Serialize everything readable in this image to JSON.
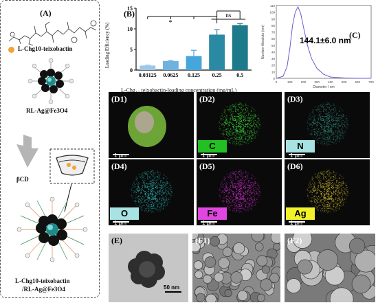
{
  "panelA": {
    "label": "(A)",
    "peptide_label": "L-Chg10-teixobactin",
    "np_label": "RL-Ag@Fe3O4",
    "bcd_label": "βCD",
    "final_label_line1": "L-Chg10-teixobactin",
    "final_label_line2": "/RL-Ag@Fe3O4"
  },
  "panelB": {
    "label": "(B)",
    "sig_star": "*",
    "sig_ns": "ns"
  },
  "panelC": {
    "label": "(C)",
    "size_text": "144.1±6.0 nm"
  },
  "chart_data": [
    {
      "type": "bar",
      "title": "",
      "xlabel": "L-Chg10 teixobactin-loading concentration (mg/mL)",
      "ylabel": "Loading Efficiency (%)",
      "categories": [
        "0.03125",
        "0.0625",
        "0.125",
        "0.25",
        "0.5"
      ],
      "values": [
        1.1,
        2.2,
        3.4,
        8.6,
        10.9
      ],
      "errors": [
        0.1,
        0.2,
        1.4,
        1.2,
        0.4
      ],
      "ylim": [
        0,
        15
      ],
      "yticks": [
        0,
        5,
        10,
        15
      ],
      "colors": [
        "#9dc6e8",
        "#6fb2e0",
        "#46a6dc",
        "#2b8aa3",
        "#1d7a8a"
      ]
    },
    {
      "type": "line",
      "title": "",
      "xlabel": "Diameter / nm",
      "ylabel": "Number Absolute (nm)",
      "x": [
        0,
        50,
        80,
        100,
        120,
        140,
        160,
        180,
        200,
        230,
        260,
        300,
        350,
        400,
        500,
        600,
        700
      ],
      "values": [
        0,
        3,
        18,
        45,
        80,
        100,
        108,
        98,
        78,
        50,
        30,
        15,
        6,
        2,
        0.5,
        0,
        0
      ],
      "xlim": [
        0,
        700
      ],
      "ylim": [
        0,
        110
      ],
      "xticks": [
        0,
        100,
        200,
        300,
        400,
        500,
        600,
        700
      ],
      "yticks": [
        0,
        10,
        20,
        30,
        40,
        50,
        60,
        70,
        80,
        90,
        100,
        110
      ],
      "color": "#6a5acd"
    }
  ],
  "maps": [
    {
      "code": "(D1)",
      "tag": "",
      "scale": "1 μm",
      "color": "#7fbf3f",
      "tag_bg": ""
    },
    {
      "code": "(D2)",
      "tag": "C",
      "scale": "1 μm",
      "color": "#39d339",
      "tag_bg": "#22c022"
    },
    {
      "code": "(D3)",
      "tag": "N",
      "scale": "1 μm",
      "color": "#2e7f6e",
      "tag_bg": "#a8e3e3"
    },
    {
      "code": "(D4)",
      "tag": "O",
      "scale": "1 μm",
      "color": "#2aa8a8",
      "tag_bg": "#a8e3e3"
    },
    {
      "code": "(D5)",
      "tag": "Fe",
      "scale": "1 μm",
      "color": "#c92bc9",
      "tag_bg": "#e046e0"
    },
    {
      "code": "(D6)",
      "tag": "Ag",
      "scale": "1 μm",
      "color": "#c8b02a",
      "tag_bg": "#f2f22a"
    }
  ],
  "tem": {
    "code": "(E)",
    "scale": "50 nm"
  },
  "sem1": {
    "code": "(F1)"
  },
  "sem2": {
    "code": "(F2)"
  }
}
